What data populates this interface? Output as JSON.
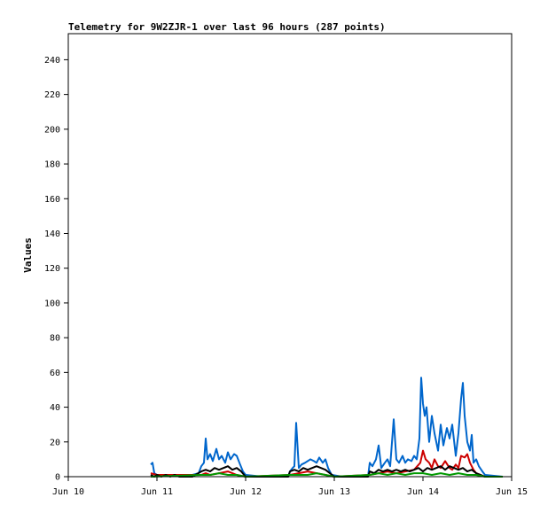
{
  "chart_data": {
    "type": "line",
    "title": "Telemetry for 9W2ZJR-1 over last 96 hours (287 points)",
    "xlabel": "",
    "ylabel": "Values",
    "ylim": [
      0,
      255
    ],
    "xlim": [
      0,
      5
    ],
    "x_unit": "days after Jun 10",
    "yticks": [
      0,
      20,
      40,
      60,
      80,
      100,
      120,
      140,
      160,
      180,
      200,
      220,
      240
    ],
    "xticks": [
      {
        "x": 0,
        "label": "Jun 10"
      },
      {
        "x": 1,
        "label": "Jun 11"
      },
      {
        "x": 2,
        "label": "Jun 12"
      },
      {
        "x": 3,
        "label": "Jun 13"
      },
      {
        "x": 4,
        "label": "Jun 14"
      },
      {
        "x": 5,
        "label": "Jun 15"
      }
    ],
    "legend": "none",
    "grid": false,
    "series": [
      {
        "color": "#0066cc",
        "points": [
          [
            0.93,
            7
          ],
          [
            0.95,
            8
          ],
          [
            0.97,
            2
          ],
          [
            1.0,
            1
          ],
          [
            1.05,
            1
          ],
          [
            1.2,
            1
          ],
          [
            1.4,
            1
          ],
          [
            1.47,
            2
          ],
          [
            1.5,
            6
          ],
          [
            1.53,
            8
          ],
          [
            1.55,
            22
          ],
          [
            1.57,
            10
          ],
          [
            1.6,
            13
          ],
          [
            1.63,
            9
          ],
          [
            1.67,
            16
          ],
          [
            1.7,
            10
          ],
          [
            1.73,
            12
          ],
          [
            1.77,
            8
          ],
          [
            1.8,
            14
          ],
          [
            1.83,
            10
          ],
          [
            1.87,
            13
          ],
          [
            1.9,
            12
          ],
          [
            1.93,
            8
          ],
          [
            1.97,
            3
          ],
          [
            2.0,
            1
          ],
          [
            2.2,
            0
          ],
          [
            2.48,
            0
          ],
          [
            2.5,
            3
          ],
          [
            2.53,
            5
          ],
          [
            2.55,
            6
          ],
          [
            2.57,
            31
          ],
          [
            2.6,
            5
          ],
          [
            2.63,
            7
          ],
          [
            2.67,
            8
          ],
          [
            2.7,
            9
          ],
          [
            2.73,
            10
          ],
          [
            2.77,
            9
          ],
          [
            2.8,
            8
          ],
          [
            2.83,
            11
          ],
          [
            2.87,
            8
          ],
          [
            2.9,
            10
          ],
          [
            2.93,
            5
          ],
          [
            2.97,
            1
          ],
          [
            3.1,
            0
          ],
          [
            3.38,
            0
          ],
          [
            3.4,
            8
          ],
          [
            3.43,
            6
          ],
          [
            3.47,
            10
          ],
          [
            3.5,
            18
          ],
          [
            3.53,
            5
          ],
          [
            3.57,
            8
          ],
          [
            3.6,
            10
          ],
          [
            3.63,
            6
          ],
          [
            3.67,
            33
          ],
          [
            3.7,
            10
          ],
          [
            3.73,
            8
          ],
          [
            3.77,
            12
          ],
          [
            3.8,
            8
          ],
          [
            3.83,
            10
          ],
          [
            3.87,
            9
          ],
          [
            3.9,
            12
          ],
          [
            3.93,
            10
          ],
          [
            3.96,
            22
          ],
          [
            3.98,
            57
          ],
          [
            4.0,
            42
          ],
          [
            4.02,
            35
          ],
          [
            4.04,
            40
          ],
          [
            4.07,
            20
          ],
          [
            4.1,
            35
          ],
          [
            4.13,
            25
          ],
          [
            4.17,
            15
          ],
          [
            4.2,
            30
          ],
          [
            4.23,
            18
          ],
          [
            4.27,
            28
          ],
          [
            4.3,
            22
          ],
          [
            4.33,
            30
          ],
          [
            4.37,
            12
          ],
          [
            4.4,
            25
          ],
          [
            4.43,
            45
          ],
          [
            4.45,
            54
          ],
          [
            4.47,
            35
          ],
          [
            4.5,
            20
          ],
          [
            4.53,
            15
          ],
          [
            4.55,
            24
          ],
          [
            4.57,
            8
          ],
          [
            4.6,
            10
          ],
          [
            4.63,
            6
          ],
          [
            4.67,
            3
          ],
          [
            4.7,
            1
          ],
          [
            4.9,
            0
          ]
        ]
      },
      {
        "color": "#cc0000",
        "points": [
          [
            0.93,
            2
          ],
          [
            1.0,
            1
          ],
          [
            1.5,
            1
          ],
          [
            1.55,
            2
          ],
          [
            1.6,
            1
          ],
          [
            1.7,
            2
          ],
          [
            1.8,
            3
          ],
          [
            1.9,
            1
          ],
          [
            2.0,
            0
          ],
          [
            2.5,
            1
          ],
          [
            2.6,
            2
          ],
          [
            2.7,
            3
          ],
          [
            2.8,
            2
          ],
          [
            2.9,
            1
          ],
          [
            3.0,
            0
          ],
          [
            3.4,
            1
          ],
          [
            3.5,
            2
          ],
          [
            3.6,
            3
          ],
          [
            3.7,
            2
          ],
          [
            3.8,
            3
          ],
          [
            3.9,
            4
          ],
          [
            3.97,
            8
          ],
          [
            4.0,
            15
          ],
          [
            4.03,
            10
          ],
          [
            4.07,
            8
          ],
          [
            4.1,
            5
          ],
          [
            4.13,
            10
          ],
          [
            4.17,
            6
          ],
          [
            4.2,
            5
          ],
          [
            4.25,
            9
          ],
          [
            4.3,
            5
          ],
          [
            4.33,
            4
          ],
          [
            4.37,
            7
          ],
          [
            4.4,
            5
          ],
          [
            4.43,
            12
          ],
          [
            4.47,
            11
          ],
          [
            4.5,
            13
          ],
          [
            4.53,
            8
          ],
          [
            4.57,
            4
          ],
          [
            4.6,
            2
          ],
          [
            4.65,
            1
          ],
          [
            4.7,
            0
          ],
          [
            4.9,
            0
          ]
        ]
      },
      {
        "color": "#000000",
        "points": [
          [
            0.93,
            1
          ],
          [
            0.97,
            0
          ],
          [
            1.0,
            1
          ],
          [
            1.05,
            0
          ],
          [
            1.1,
            1
          ],
          [
            1.15,
            0
          ],
          [
            1.2,
            1
          ],
          [
            1.25,
            0
          ],
          [
            1.4,
            0
          ],
          [
            1.5,
            3
          ],
          [
            1.55,
            4
          ],
          [
            1.6,
            3
          ],
          [
            1.65,
            5
          ],
          [
            1.7,
            4
          ],
          [
            1.75,
            5
          ],
          [
            1.8,
            6
          ],
          [
            1.85,
            4
          ],
          [
            1.9,
            5
          ],
          [
            1.95,
            3
          ],
          [
            2.0,
            0
          ],
          [
            2.48,
            0
          ],
          [
            2.5,
            3
          ],
          [
            2.55,
            4
          ],
          [
            2.6,
            3
          ],
          [
            2.65,
            5
          ],
          [
            2.7,
            4
          ],
          [
            2.75,
            5
          ],
          [
            2.8,
            6
          ],
          [
            2.85,
            5
          ],
          [
            2.9,
            4
          ],
          [
            2.95,
            2
          ],
          [
            3.0,
            0
          ],
          [
            3.38,
            0
          ],
          [
            3.4,
            3
          ],
          [
            3.45,
            2
          ],
          [
            3.5,
            4
          ],
          [
            3.55,
            3
          ],
          [
            3.6,
            4
          ],
          [
            3.65,
            3
          ],
          [
            3.7,
            4
          ],
          [
            3.75,
            3
          ],
          [
            3.8,
            4
          ],
          [
            3.85,
            3
          ],
          [
            3.9,
            4
          ],
          [
            3.95,
            5
          ],
          [
            4.0,
            3
          ],
          [
            4.05,
            5
          ],
          [
            4.1,
            4
          ],
          [
            4.15,
            5
          ],
          [
            4.2,
            6
          ],
          [
            4.25,
            4
          ],
          [
            4.3,
            6
          ],
          [
            4.35,
            5
          ],
          [
            4.4,
            4
          ],
          [
            4.45,
            5
          ],
          [
            4.5,
            3
          ],
          [
            4.55,
            4
          ],
          [
            4.6,
            2
          ],
          [
            4.65,
            1
          ],
          [
            4.7,
            0
          ],
          [
            4.9,
            0
          ]
        ]
      },
      {
        "color": "#009900",
        "points": [
          [
            0.93,
            0
          ],
          [
            1.5,
            1
          ],
          [
            1.6,
            1
          ],
          [
            1.7,
            2
          ],
          [
            1.8,
            1
          ],
          [
            1.9,
            1
          ],
          [
            2.0,
            0
          ],
          [
            2.5,
            1
          ],
          [
            2.7,
            1
          ],
          [
            2.8,
            2
          ],
          [
            2.9,
            1
          ],
          [
            3.0,
            0
          ],
          [
            3.4,
            1
          ],
          [
            3.5,
            2
          ],
          [
            3.6,
            1
          ],
          [
            3.7,
            2
          ],
          [
            3.8,
            1
          ],
          [
            3.9,
            2
          ],
          [
            4.0,
            2
          ],
          [
            4.1,
            1
          ],
          [
            4.2,
            2
          ],
          [
            4.3,
            1
          ],
          [
            4.4,
            2
          ],
          [
            4.5,
            1
          ],
          [
            4.6,
            1
          ],
          [
            4.7,
            0
          ],
          [
            4.9,
            0
          ]
        ]
      }
    ]
  }
}
